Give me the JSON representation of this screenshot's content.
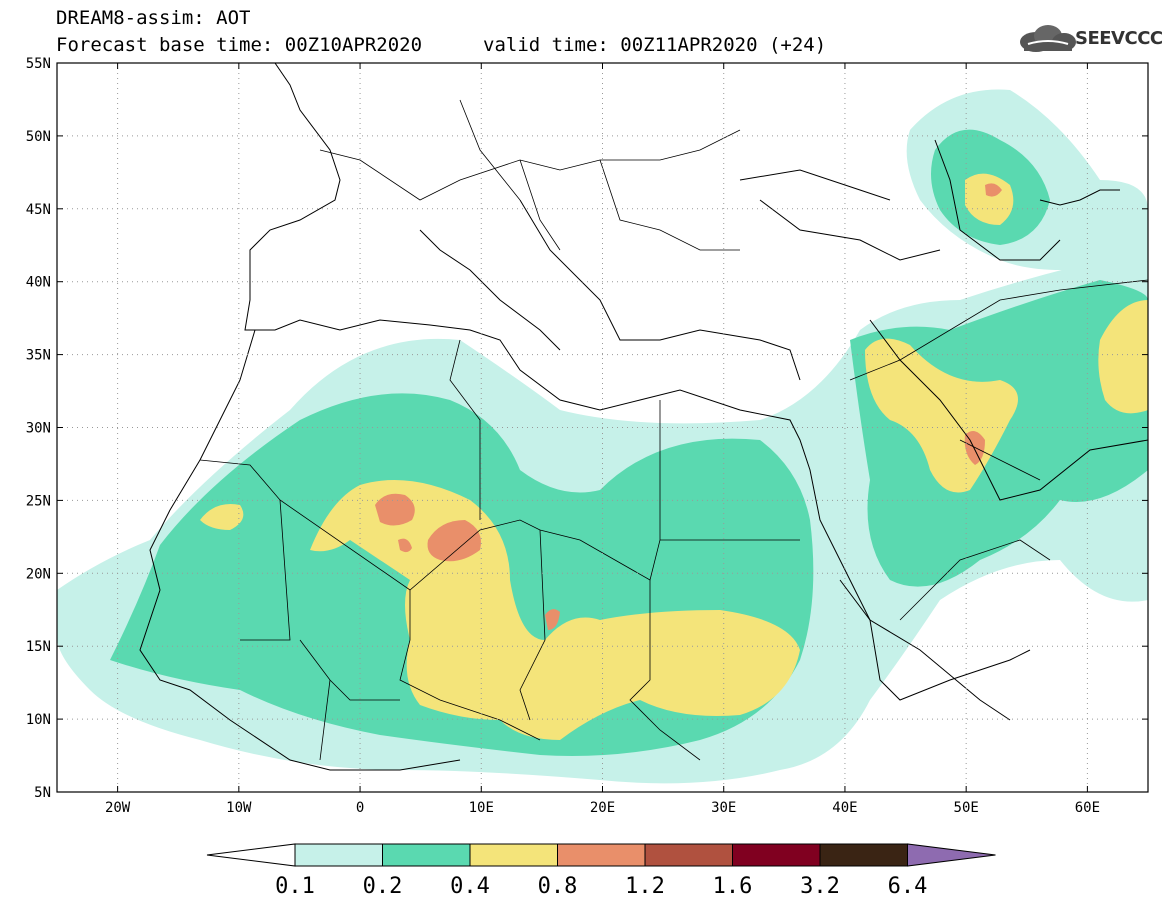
{
  "header": {
    "title": "DREAM8-assim: AOT",
    "base_time": "Forecast base time: 00Z10APR2020",
    "valid_time": "valid time: 00Z11APR2020 (+24)",
    "logo": "SEEVCCC"
  },
  "map": {
    "lon_range": [
      -25,
      65
    ],
    "lat_range": [
      5,
      55
    ],
    "lat_labels": [
      "55N",
      "50N",
      "45N",
      "40N",
      "35N",
      "30N",
      "25N",
      "20N",
      "15N",
      "10N",
      "5N"
    ],
    "lon_labels": [
      "20W",
      "10W",
      "0",
      "10E",
      "20E",
      "30E",
      "40E",
      "50E",
      "60E"
    ]
  },
  "colorbar": {
    "labels": [
      "0.1",
      "0.2",
      "0.4",
      "0.8",
      "1.2",
      "1.6",
      "3.2",
      "6.4"
    ],
    "colors": [
      "#ffffff",
      "#c6f1e9",
      "#5ad9b0",
      "#f4e47a",
      "#e98f6a",
      "#b0513f",
      "#800020",
      "#3a2414",
      "#8e6bb0"
    ]
  }
}
